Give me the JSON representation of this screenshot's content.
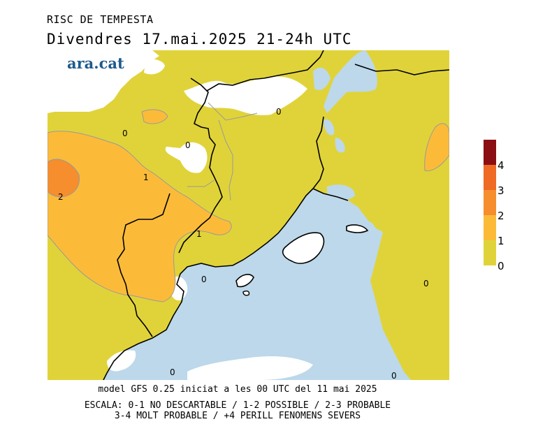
{
  "header": {
    "title": "RISC DE TEMPESTA",
    "subtitle": "Divendres  17.mai.2025 21-24h UTC",
    "logo_text": "ara.cat"
  },
  "map": {
    "colors": {
      "sea": "#bcd8ea",
      "level_0_1": "#e0d33a",
      "level_1_2": "#fbbb39",
      "level_2_3": "#f68e2d",
      "level_3_4": "#ef6a24",
      "level_4_plus": "#8b0f12",
      "no_data": "#ffffff"
    },
    "contour_labels": [
      "0",
      "0",
      "0",
      "1",
      "2",
      "1",
      "0",
      "0",
      "0",
      "0"
    ]
  },
  "legend": {
    "ticks": [
      "4",
      "3",
      "2",
      "1",
      "0"
    ]
  },
  "footer": {
    "line1": "model GFS 0.25 iniciat a les 00 UTC del 11 mai 2025",
    "line2": "ESCALA: 0-1 NO DESCARTABLE / 1-2 POSSIBLE / 2-3 PROBABLE",
    "line3": "3-4 MOLT PROBABLE / +4 PERILL FENOMENS SEVERS"
  }
}
